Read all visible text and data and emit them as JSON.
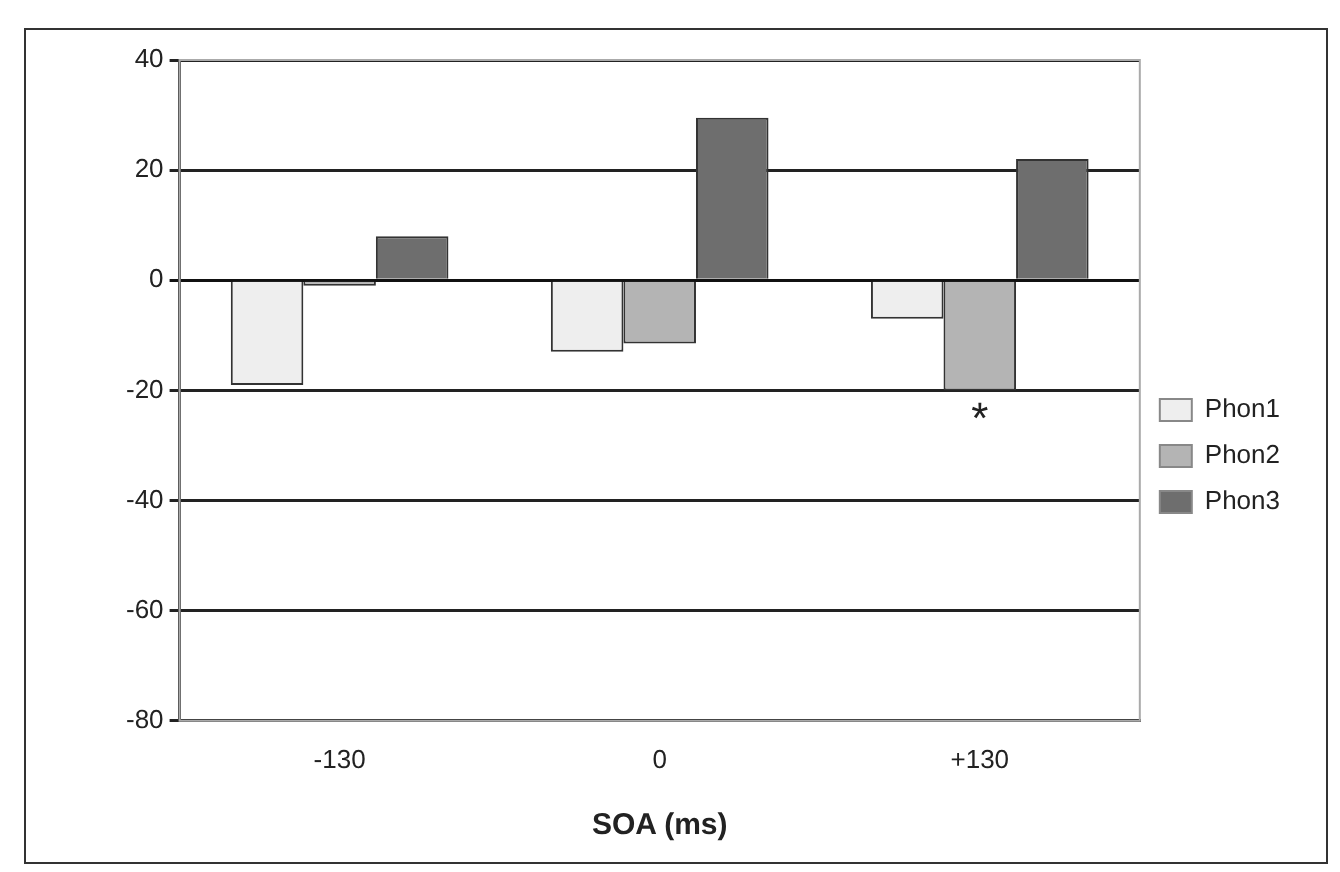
{
  "chart_data": {
    "type": "bar",
    "xlabel": "SOA (ms)",
    "categories": [
      "-130",
      "0",
      "+130"
    ],
    "series": [
      {
        "name": "Phon1",
        "color": "#eeeeee",
        "values": [
          -19,
          -13,
          -7
        ]
      },
      {
        "name": "Phon2",
        "color": "#b4b4b4",
        "values": [
          -1,
          -11.5,
          -20
        ]
      },
      {
        "name": "Phon3",
        "color": "#6e6e6e",
        "values": [
          8,
          29.5,
          22
        ]
      }
    ],
    "ylim": [
      -80,
      40
    ],
    "yticks": [
      -80,
      -60,
      -40,
      -20,
      0,
      20,
      40
    ],
    "grid": "y",
    "legend": "right",
    "annotations": [
      {
        "text": "*",
        "x": "+130",
        "y": -20
      }
    ]
  }
}
